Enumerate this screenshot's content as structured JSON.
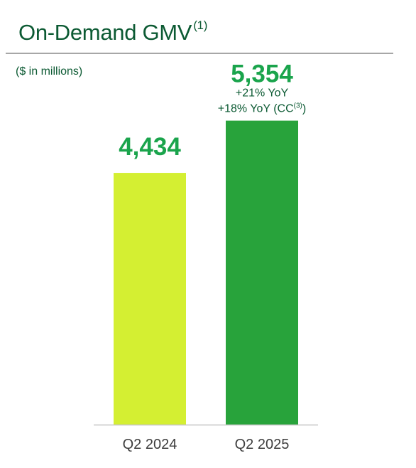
{
  "header": {
    "title": "On-Demand GMV",
    "title_footnote": "(1)",
    "units": "($ in millions)"
  },
  "chart_data": {
    "type": "bar",
    "categories": [
      "Q2 2024",
      "Q2 2025"
    ],
    "values": [
      4434,
      5354
    ],
    "value_labels": [
      "4,434",
      "5,354"
    ],
    "bar_colors": [
      "#d4ef32",
      "#28a33b"
    ],
    "annotations": [
      [],
      [
        {
          "text": "+21% YoY",
          "sup": ""
        },
        {
          "text": "+18% YoY (CC",
          "sup": "(3)",
          "after": ")"
        }
      ]
    ],
    "title": "On-Demand GMV",
    "xlabel": "",
    "ylabel": "",
    "ylim": [
      0,
      5750
    ],
    "grid": false,
    "legend": "none"
  }
}
